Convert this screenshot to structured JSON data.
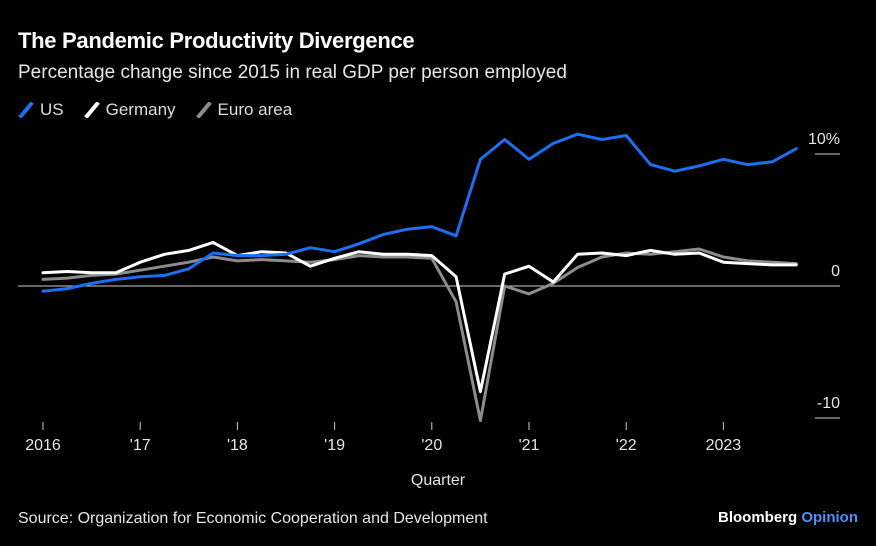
{
  "header": {
    "title": "The Pandemic Productivity Divergence",
    "subtitle": "Percentage change since 2015 in real GDP per person employed"
  },
  "footer": {
    "source": "Source: Organization for Economic Cooperation and Development",
    "brand_main": "Bloomberg",
    "brand_accent": "Opinion"
  },
  "colors": {
    "us": "#1d6ff2",
    "germany": "#ffffff",
    "euro_area": "#8c8c8c",
    "zero_line": "#cccccc"
  },
  "chart_data": {
    "type": "line",
    "title": "The Pandemic Productivity Divergence",
    "subtitle": "Percentage change since 2015 in real GDP per person employed",
    "xlabel": "Quarter",
    "ylabel": "",
    "x_start": "2016-Q1",
    "x_tick_labels": [
      "2016",
      "'17",
      "'18",
      "'19",
      "'20",
      "'21",
      "'22",
      "2023"
    ],
    "y_tick_labels": [
      "10%",
      "0",
      "-10"
    ],
    "y_ticks": [
      10,
      0,
      -10
    ],
    "ylim": [
      -11,
      11
    ],
    "grid": false,
    "legend_position": "top-left",
    "series": [
      {
        "name": "US",
        "color": "#1d6ff2",
        "values": [
          -0.4,
          -0.2,
          0.2,
          0.5,
          0.7,
          0.8,
          1.3,
          2.5,
          2.3,
          2.3,
          2.4,
          2.9,
          2.6,
          3.2,
          3.9,
          4.3,
          4.5,
          3.8,
          9.6,
          11.1,
          9.6,
          10.8,
          11.5,
          11.1,
          11.4,
          9.2,
          8.7,
          9.1,
          9.6,
          9.2,
          9.4,
          10.4
        ]
      },
      {
        "name": "Germany",
        "color": "#ffffff",
        "values": [
          1.0,
          1.1,
          1.0,
          1.0,
          1.8,
          2.4,
          2.7,
          3.3,
          2.3,
          2.6,
          2.5,
          1.5,
          2.1,
          2.6,
          2.4,
          2.4,
          2.3,
          0.7,
          -8.0,
          0.9,
          1.5,
          0.3,
          2.4,
          2.5,
          2.3,
          2.7,
          2.4,
          2.5,
          1.8,
          1.7,
          1.6,
          1.6
        ]
      },
      {
        "name": "Euro area",
        "color": "#8c8c8c",
        "values": [
          0.5,
          0.6,
          0.8,
          0.9,
          1.2,
          1.5,
          1.8,
          2.2,
          1.9,
          2.0,
          1.9,
          1.8,
          2.0,
          2.3,
          2.2,
          2.2,
          2.1,
          -1.2,
          -10.2,
          0.0,
          -0.6,
          0.2,
          1.4,
          2.2,
          2.5,
          2.4,
          2.6,
          2.8,
          2.2,
          1.9,
          1.8,
          1.7
        ]
      }
    ]
  }
}
